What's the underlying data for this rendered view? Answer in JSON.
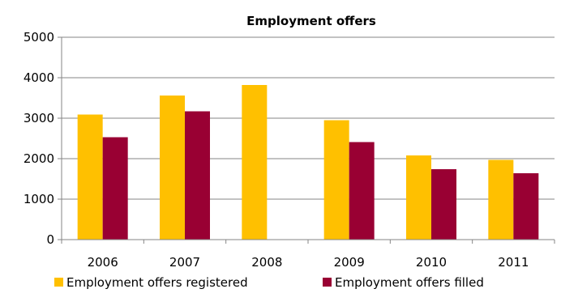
{
  "chart_data": {
    "type": "bar",
    "title": "Employment offers",
    "xlabel": "",
    "ylabel": "",
    "categories": [
      "2006",
      "2007",
      "2008",
      "2009",
      "2010",
      "2011"
    ],
    "y_ticks": [
      "0",
      "1000",
      "2000",
      "3000",
      "4000",
      "5000"
    ],
    "ylim": [
      0,
      5000
    ],
    "grid": true,
    "legend_position": "bottom",
    "series": [
      {
        "name": "Employment offers registered",
        "color": "#FFC000",
        "values": [
          3090,
          3560,
          3820,
          2950,
          2080,
          1970
        ]
      },
      {
        "name": "Employment offers filled",
        "color": "#990033",
        "values": [
          2530,
          3170,
          null,
          2410,
          1740,
          1640
        ]
      }
    ]
  }
}
